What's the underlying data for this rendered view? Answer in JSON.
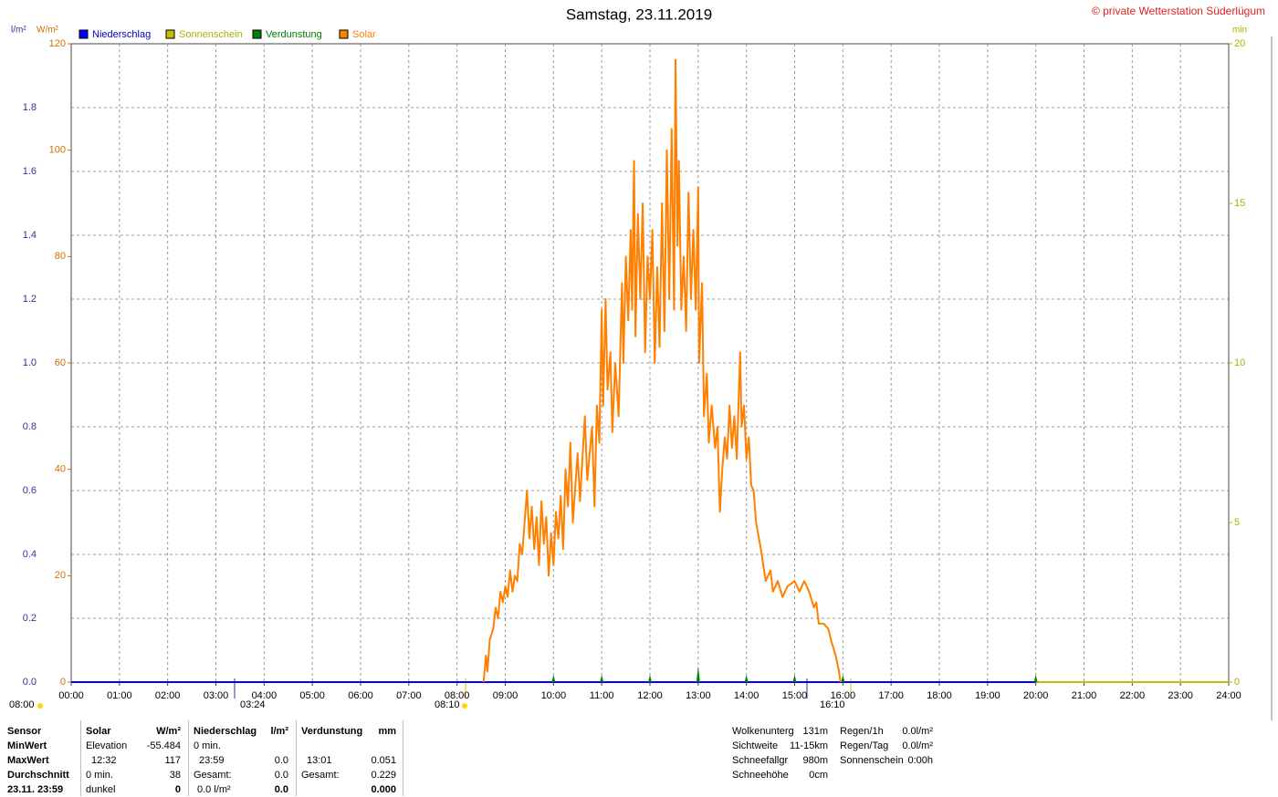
{
  "header": {
    "title": "Samstag, 23.11.2019",
    "credit": "© private Wetterstation Süderlügum"
  },
  "chart_data": {
    "type": "line",
    "y_label": "l/m²",
    "y2_label": "W/m²",
    "y3_label": "min",
    "xlim": [
      0,
      24
    ],
    "xticks": [
      {
        "value": 0,
        "label": "00:00"
      },
      {
        "value": 1,
        "label": "01:00"
      },
      {
        "value": 2,
        "label": "02:00"
      },
      {
        "value": 3,
        "label": "03:00"
      },
      {
        "value": 4,
        "label": "04:00"
      },
      {
        "value": 5,
        "label": "05:00"
      },
      {
        "value": 6,
        "label": "06:00"
      },
      {
        "value": 7,
        "label": "07:00"
      },
      {
        "value": 8,
        "label": "08:00"
      },
      {
        "value": 9,
        "label": "09:00"
      },
      {
        "value": 10,
        "label": "10:00"
      },
      {
        "value": 11,
        "label": "11:00"
      },
      {
        "value": 12,
        "label": "12:00"
      },
      {
        "value": 13,
        "label": "13:00"
      },
      {
        "value": 14,
        "label": "14:00"
      },
      {
        "value": 15,
        "label": "15:00"
      },
      {
        "value": 16,
        "label": "16:00"
      },
      {
        "value": 17,
        "label": "17:00"
      },
      {
        "value": 18,
        "label": "18:00"
      },
      {
        "value": 19,
        "label": "19:00"
      },
      {
        "value": 20,
        "label": "20:00"
      },
      {
        "value": 21,
        "label": "21:00"
      },
      {
        "value": 22,
        "label": "22:00"
      },
      {
        "value": 23,
        "label": "23:00"
      },
      {
        "value": 24,
        "label": "24:00"
      }
    ],
    "ylim": [
      0,
      2
    ],
    "yticks": [
      {
        "value": 0,
        "label": "0.0"
      },
      0.2,
      0.4,
      0.6,
      0.8,
      {
        "value": 1,
        "label": "1.0"
      },
      1.2,
      1.4,
      1.6,
      1.8
    ],
    "y2lim": [
      0,
      120
    ],
    "y2ticks": [
      0,
      20,
      40,
      60,
      80,
      100,
      120
    ],
    "y3lim": [
      0,
      20
    ],
    "y3ticks": [
      0,
      5,
      10,
      15,
      20
    ],
    "grid": true,
    "series": [
      {
        "name": "Niederschlag",
        "color": "#0000ff",
        "axis": "y",
        "x": [
          0,
          20
        ],
        "values": [
          0,
          0
        ]
      },
      {
        "name": "Sonnenschein",
        "color": "#c0c000",
        "axis": "y3",
        "x": [
          0,
          24
        ],
        "values": [
          0,
          0
        ]
      },
      {
        "name": "Verdunstung",
        "color": "#008000",
        "axis": "y",
        "x": [
          10,
          11,
          12,
          13,
          14,
          15,
          16,
          20
        ],
        "values": [
          0.023,
          0.023,
          0.023,
          0.051,
          0.023,
          0.023,
          0.023,
          0.023
        ]
      },
      {
        "name": "Solar",
        "color": "#ff8000",
        "axis": "y2",
        "x": [
          8.55,
          8.6,
          8.63,
          8.68,
          8.75,
          8.8,
          8.85,
          8.9,
          8.95,
          9.0,
          9.05,
          9.1,
          9.15,
          9.2,
          9.25,
          9.3,
          9.35,
          9.4,
          9.45,
          9.5,
          9.55,
          9.6,
          9.65,
          9.7,
          9.75,
          9.8,
          9.85,
          9.9,
          9.95,
          10.0,
          10.05,
          10.1,
          10.15,
          10.2,
          10.25,
          10.3,
          10.35,
          10.4,
          10.5,
          10.55,
          10.65,
          10.7,
          10.8,
          10.85,
          10.9,
          10.95,
          11.0,
          11.03,
          11.08,
          11.12,
          11.18,
          11.22,
          11.28,
          11.35,
          11.42,
          11.45,
          11.5,
          11.55,
          11.6,
          11.63,
          11.67,
          11.7,
          11.75,
          11.8,
          11.85,
          11.9,
          11.95,
          12.0,
          12.05,
          12.1,
          12.15,
          12.2,
          12.25,
          12.3,
          12.35,
          12.4,
          12.45,
          12.5,
          12.53,
          12.57,
          12.6,
          12.65,
          12.7,
          12.75,
          12.8,
          12.85,
          12.9,
          12.95,
          13.0,
          13.02,
          13.08,
          13.12,
          13.18,
          13.22,
          13.28,
          13.35,
          13.4,
          13.45,
          13.5,
          13.55,
          13.6,
          13.65,
          13.7,
          13.75,
          13.8,
          13.87,
          13.9,
          13.95,
          14.0,
          14.05,
          14.1,
          14.15,
          14.2,
          14.3,
          14.4,
          14.5,
          14.55,
          14.65,
          14.75,
          14.85,
          15.0,
          15.1,
          15.2,
          15.3,
          15.4,
          15.45,
          15.5,
          15.6,
          15.7,
          15.75,
          15.85,
          15.92,
          15.95
        ],
        "values": [
          0,
          5,
          2,
          8,
          10,
          14,
          12,
          17,
          15,
          18,
          16,
          21,
          17,
          20,
          19,
          26,
          24,
          30,
          36,
          27,
          33,
          25,
          31,
          22,
          34,
          26,
          31,
          20,
          28,
          22,
          32,
          27,
          35,
          25,
          40,
          33,
          45,
          30,
          43,
          34,
          50,
          38,
          48,
          33,
          52,
          45,
          70,
          52,
          72,
          55,
          62,
          47,
          60,
          50,
          75,
          60,
          80,
          68,
          85,
          70,
          98,
          65,
          88,
          72,
          90,
          62,
          80,
          72,
          85,
          60,
          78,
          63,
          90,
          66,
          100,
          72,
          104,
          70,
          117,
          82,
          98,
          70,
          80,
          66,
          92,
          72,
          85,
          70,
          93,
          60,
          75,
          50,
          58,
          45,
          52,
          44,
          48,
          32,
          40,
          46,
          42,
          52,
          44,
          50,
          42,
          62,
          48,
          52,
          42,
          46,
          37,
          36,
          30,
          25,
          19,
          21,
          17,
          19,
          16,
          18,
          19,
          17,
          19,
          17,
          14,
          15,
          11,
          11,
          10,
          8,
          5,
          2,
          0
        ]
      }
    ],
    "annotations": [
      "08:00",
      "03:24",
      "08:10",
      "16:10"
    ]
  },
  "stats": {
    "row_labels": [
      "Sensor",
      "MinWert",
      "MaxWert",
      "Durchschnitt",
      "23.11. 23:59"
    ],
    "solar": {
      "name": "Solar",
      "unit": "W/m²",
      "rows": [
        [
          "Elevation",
          "-55.484"
        ],
        [
          "12:32",
          "117"
        ],
        [
          "0 min.",
          "38"
        ],
        [
          "dunkel",
          "0"
        ]
      ]
    },
    "niederschlag": {
      "name": "Niederschlag",
      "unit": "l/m²",
      "rows": [
        [
          "0 min."
        ],
        [
          "23:59",
          "0.0"
        ],
        [
          "Gesamt:",
          "0.0"
        ],
        [
          "0.0 l/m²",
          "0.0"
        ]
      ]
    },
    "verdunstung": {
      "name": "Verdunstung",
      "unit": "mm",
      "rows": [
        [
          "13:01",
          "0.051"
        ],
        [
          "Gesamt:",
          "0.229"
        ],
        [
          "0.000"
        ]
      ]
    },
    "current": [
      [
        "Wolkenunterg",
        "131m"
      ],
      [
        "Sichtweite",
        "11-15km"
      ],
      [
        "Schneefallgr",
        "980m"
      ],
      [
        "Schneehöhe",
        "0cm"
      ]
    ],
    "rain": [
      [
        "Regen/1h",
        "0.0l/m²"
      ],
      [
        "Regen/Tag",
        "0.0l/m²"
      ],
      [
        "Sonnenschein",
        "0:00h"
      ]
    ]
  }
}
